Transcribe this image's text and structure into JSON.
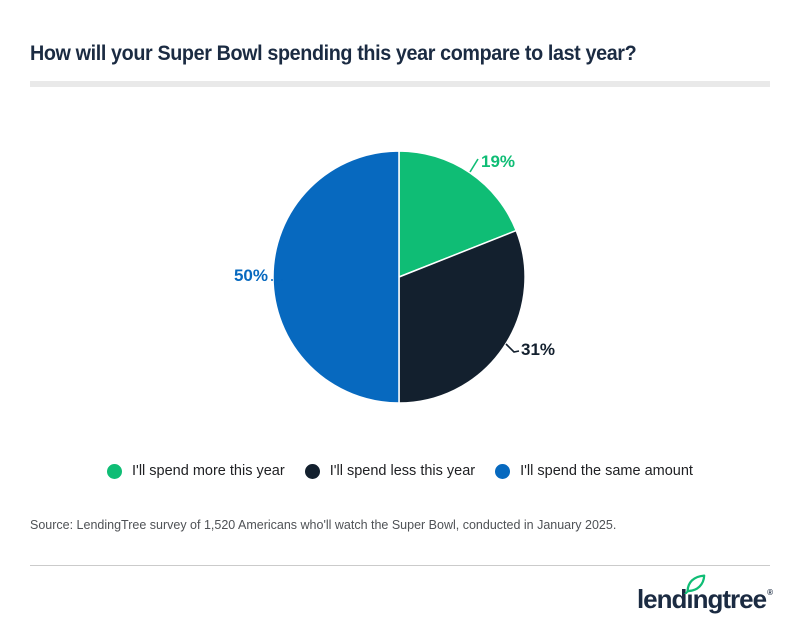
{
  "page": {
    "title": "How will your Super Bowl spending this year compare to last year?",
    "source": "Source: LendingTree survey of 1,520 Americans who'll watch the Super Bowl, conducted in January 2025.",
    "brand": {
      "logo_text": "lendingtree",
      "registered_mark": "®",
      "leaf_icon": "leaf-icon",
      "leaf_color": "#0fbd75"
    }
  },
  "colors": {
    "title_navy": "#1b2b42",
    "slice_green": "#0fbd75",
    "slice_dark": "#13202e",
    "slice_blue": "#0769bf",
    "legend_text": "#202124",
    "source_text": "#4f5256",
    "divider_thick": "#e9e9e9",
    "divider_thin": "#cbcbcb",
    "background": "#ffffff"
  },
  "chart_data": {
    "type": "pie",
    "title": "How will your Super Bowl spending this year compare to last year?",
    "slices": [
      {
        "label": "I'll spend more this year",
        "value": 19,
        "color": "#0fbd75"
      },
      {
        "label": "I'll spend less this year",
        "value": 31,
        "color": "#13202e"
      },
      {
        "label": "I'll spend the same amount",
        "value": 50,
        "color": "#0769bf"
      }
    ],
    "value_suffix": "%",
    "start_angle_deg": -90,
    "direction": "clockwise",
    "legend_position": "bottom",
    "data_labels": "outside"
  }
}
